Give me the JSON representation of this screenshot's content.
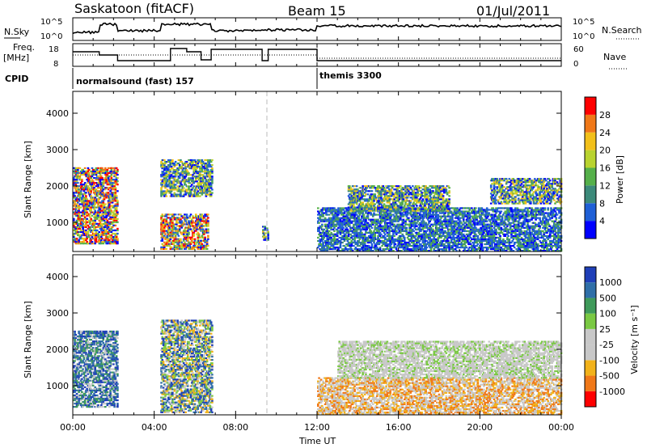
{
  "header": {
    "station": "Saskatoon (fitACF)",
    "beam": "Beam 15",
    "date": "01/Jul/2011"
  },
  "noise_panel": {
    "left_label": "N.Sky",
    "right_label": "N.Search",
    "left_ticks": [
      "10^5",
      "10^0"
    ],
    "right_ticks": [
      "10^5",
      "10^0"
    ]
  },
  "freq_panel": {
    "left_label_line1": "Freq.",
    "left_label_line2": "[MHz]",
    "right_label": "Nave",
    "left_ticks": [
      "18",
      "8"
    ],
    "right_ticks": [
      "60",
      "0"
    ]
  },
  "cpid_panel": {
    "label": "CPID",
    "segments": [
      {
        "name": "normalsound (fast) 157",
        "start_hour": 0
      },
      {
        "name": "themis 3300",
        "start_hour": 12
      }
    ]
  },
  "time_axis": {
    "xlabel": "Time UT",
    "ticks": [
      "00:00",
      "04:00",
      "08:00",
      "12:00",
      "16:00",
      "20:00",
      "00:00"
    ]
  },
  "range_axis": {
    "ylabel": "Slant Range [km]",
    "ticks": [
      "1000",
      "2000",
      "3000",
      "4000"
    ]
  },
  "power_scale": {
    "label": "Power [dB]",
    "ticks": [
      "4",
      "8",
      "12",
      "16",
      "20",
      "24",
      "28"
    ],
    "colors": [
      "#0000ff",
      "#1f5fd6",
      "#3c8a7a",
      "#55b04a",
      "#b9d32f",
      "#f2c01a",
      "#f07818",
      "#ff0000"
    ]
  },
  "velocity_scale": {
    "label": "Velocity [m s⁻¹]",
    "ticks": [
      "1000",
      "500",
      "100",
      "25",
      "-25",
      "-100",
      "-500",
      "-1000"
    ],
    "colors": [
      "#1f3fb8",
      "#2f6fa8",
      "#3f9a5a",
      "#7ac943",
      "#c8c8c8",
      "#c8c8c8",
      "#f2b21a",
      "#f07818",
      "#ff0000"
    ]
  },
  "chart_data": {
    "type": "heatmap",
    "title": "Saskatoon (fitACF)",
    "xlabel": "Time UT",
    "ylabel": "Slant Range [km]",
    "xlim_hours": [
      0,
      24
    ],
    "ylim_km": [
      200,
      4600
    ],
    "panels": [
      {
        "name": "Power",
        "colorbar_label": "Power [dB]",
        "colorbar_ticks": [
          4,
          8,
          12,
          16,
          20,
          24,
          28
        ],
        "echo_regions": [
          {
            "t": [
              0.0,
              2.2
            ],
            "r": [
              400,
              2500
            ],
            "level": "high"
          },
          {
            "t": [
              4.3,
              6.6
            ],
            "r": [
              250,
              1200
            ],
            "level": "high"
          },
          {
            "t": [
              4.3,
              6.8
            ],
            "r": [
              1700,
              2700
            ],
            "level": "medium"
          },
          {
            "t": [
              9.3,
              9.6
            ],
            "r": [
              500,
              900
            ],
            "level": "medium"
          },
          {
            "t": [
              12.0,
              24.0
            ],
            "r": [
              200,
              1400
            ],
            "level": "low"
          },
          {
            "t": [
              13.5,
              18.5
            ],
            "r": [
              1300,
              2000
            ],
            "level": "medium"
          },
          {
            "t": [
              20.5,
              24.0
            ],
            "r": [
              1500,
              2200
            ],
            "level": "medium"
          }
        ]
      },
      {
        "name": "Velocity",
        "colorbar_label": "Velocity [m s⁻¹]",
        "colorbar_ticks": [
          1000,
          500,
          100,
          25,
          -25,
          -100,
          -500,
          -1000
        ],
        "echo_regions": [
          {
            "t": [
              0.0,
              2.2
            ],
            "r": [
              400,
              2500
            ],
            "level": "positive"
          },
          {
            "t": [
              4.3,
              6.8
            ],
            "r": [
              250,
              2800
            ],
            "level": "mixed"
          },
          {
            "t": [
              12.0,
              24.0
            ],
            "r": [
              200,
              1200
            ],
            "level": "negative"
          },
          {
            "t": [
              13.0,
              24.0
            ],
            "r": [
              1200,
              2200
            ],
            "level": "near-zero"
          }
        ]
      }
    ]
  }
}
